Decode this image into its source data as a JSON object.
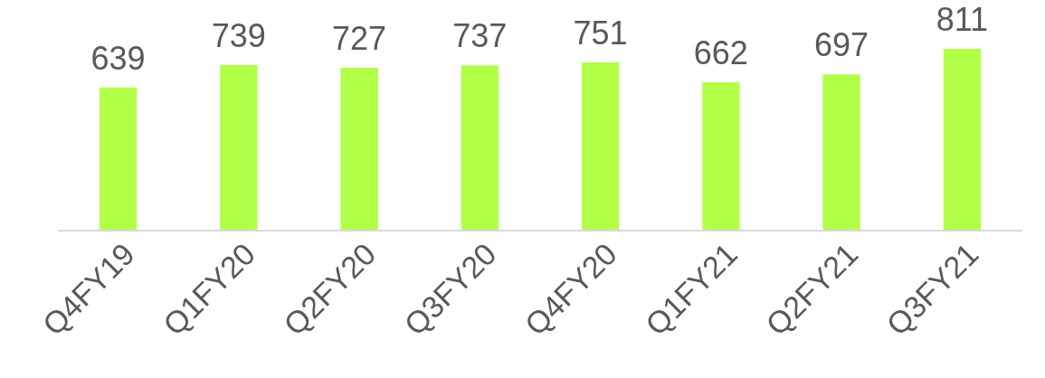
{
  "chart_data": {
    "type": "bar",
    "categories": [
      "Q4FY19",
      "Q1FY20",
      "Q2FY20",
      "Q3FY20",
      "Q4FY20",
      "Q1FY21",
      "Q2FY21",
      "Q3FY21"
    ],
    "values": [
      639,
      739,
      727,
      737,
      751,
      662,
      697,
      811
    ],
    "color": "#b2ff47",
    "data_labels": true
  }
}
